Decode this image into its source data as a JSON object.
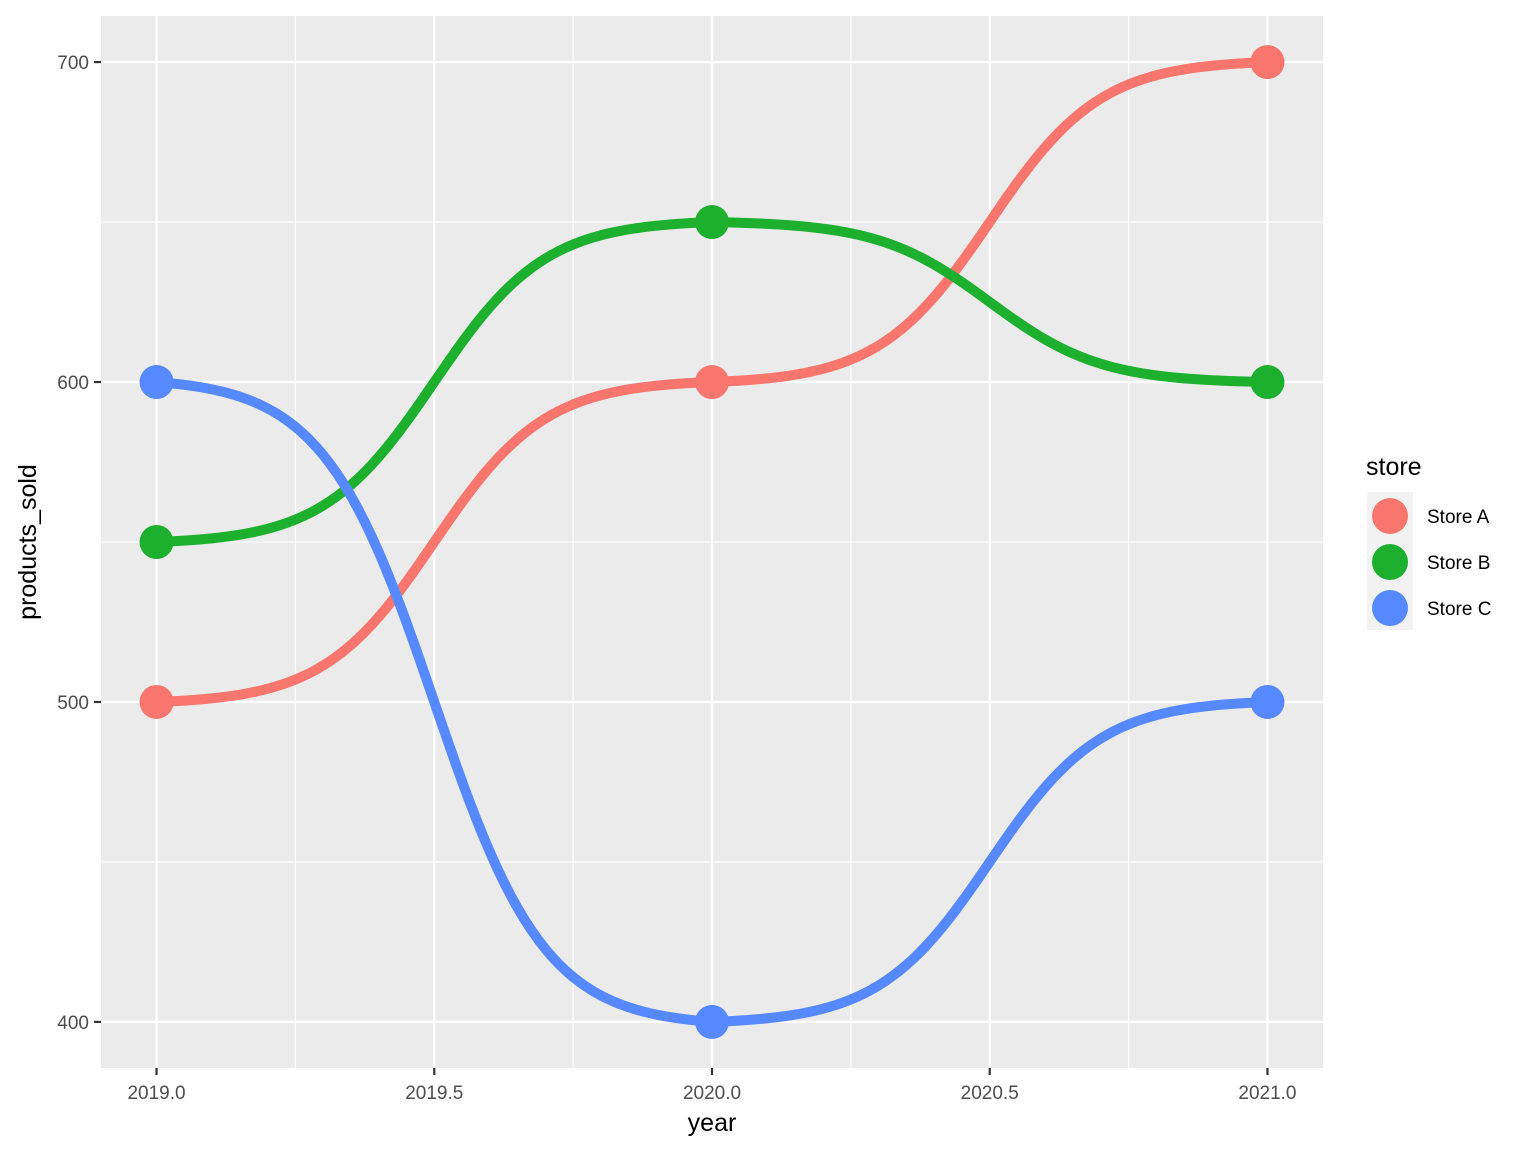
{
  "chart_data": {
    "type": "line",
    "style": "sigmoid bump chart with points",
    "title": "",
    "xlabel": "year",
    "ylabel": "products_sold",
    "x_ticks": [
      "2019.0",
      "2019.5",
      "2020.0",
      "2020.5",
      "2021.0"
    ],
    "y_ticks": [
      "400",
      "500",
      "600",
      "700"
    ],
    "xlim": [
      2018.9,
      2021.1
    ],
    "ylim": [
      385.6,
      714.4
    ],
    "grid": true,
    "legend": {
      "title": "store",
      "position": "right"
    },
    "x": [
      2019,
      2020,
      2021
    ],
    "series": [
      {
        "name": "Store A",
        "color": "#F8766D",
        "values": [
          500,
          600,
          700
        ]
      },
      {
        "name": "Store B",
        "color": "#1CB02E",
        "values": [
          550,
          650,
          600
        ]
      },
      {
        "name": "Store C",
        "color": "#5688FF",
        "values": [
          600,
          400,
          500
        ]
      }
    ]
  }
}
